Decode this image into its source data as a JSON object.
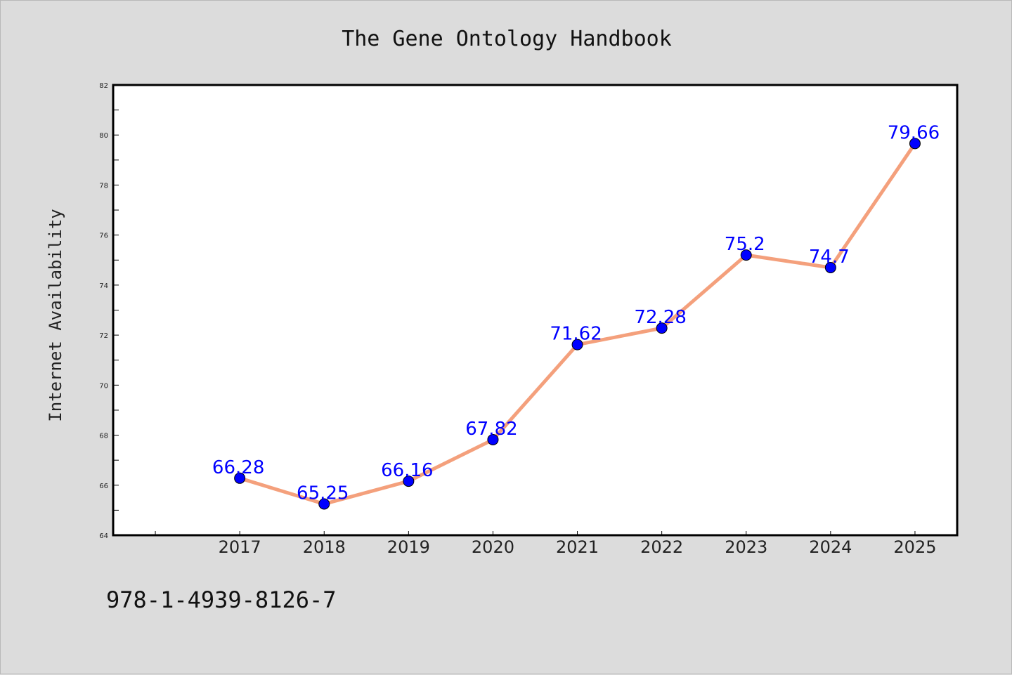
{
  "chart_data": {
    "type": "line",
    "title": "The Gene Ontology Handbook",
    "xlabel": "",
    "ylabel": "Internet Availability",
    "categories": [
      "2017",
      "2018",
      "2019",
      "2020",
      "2021",
      "2022",
      "2023",
      "2024",
      "2025"
    ],
    "series": [
      {
        "values": [
          66.28,
          65.25,
          66.16,
          67.82,
          71.62,
          72.28,
          75.2,
          74.7,
          79.66
        ],
        "labels": [
          "66.28",
          "65.25",
          "66.16",
          "67.82",
          "71.62",
          "72.28",
          "75.2",
          "74.7",
          "79.66"
        ]
      }
    ],
    "ylim": [
      64,
      82
    ],
    "yticks": [
      64,
      66,
      68,
      70,
      72,
      74,
      76,
      78,
      80,
      82
    ],
    "xlim": [
      2015.5,
      2025.5
    ],
    "grid": false,
    "legend": "none",
    "line_color": "#f4a07c",
    "marker_color": "#0000ff",
    "data_label_color": "#0000ff",
    "plot_background": "#ffffff",
    "figure_background": "#dcdcdc"
  },
  "footer": {
    "isbn": "978-1-4939-8126-7"
  }
}
